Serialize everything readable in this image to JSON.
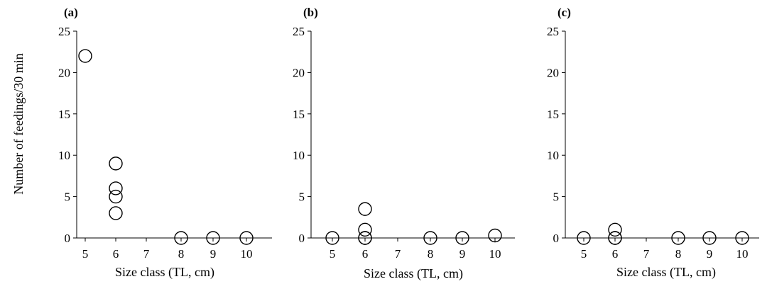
{
  "chart_data": [
    {
      "type": "scatter",
      "panel_label": "(a)",
      "title": "",
      "xlabel": "Size class (TL, cm)",
      "ylabel": "Number of feedings/30 min",
      "x_categories": [
        "5",
        "6",
        "7",
        "8",
        "9",
        "10"
      ],
      "y_ticks": [
        "0",
        "5",
        "10",
        "15",
        "20",
        "25"
      ],
      "ylim": [
        0,
        25
      ],
      "grid": false,
      "marker": "open-circle",
      "points": [
        {
          "x": "5",
          "y": 22
        },
        {
          "x": "6",
          "y": 9
        },
        {
          "x": "6",
          "y": 6
        },
        {
          "x": "6",
          "y": 5
        },
        {
          "x": "6",
          "y": 3
        },
        {
          "x": "8",
          "y": 0
        },
        {
          "x": "9",
          "y": 0
        },
        {
          "x": "10",
          "y": 0
        }
      ]
    },
    {
      "type": "scatter",
      "panel_label": "(b)",
      "title": "",
      "xlabel": "Size class (TL, cm)",
      "ylabel": "",
      "x_categories": [
        "5",
        "6",
        "7",
        "8",
        "9",
        "10"
      ],
      "y_ticks": [
        "0",
        "5",
        "10",
        "15",
        "20",
        "25"
      ],
      "ylim": [
        0,
        25
      ],
      "grid": false,
      "marker": "open-circle",
      "points": [
        {
          "x": "5",
          "y": 0
        },
        {
          "x": "6",
          "y": 3.5
        },
        {
          "x": "6",
          "y": 1
        },
        {
          "x": "6",
          "y": 0
        },
        {
          "x": "6",
          "y": 0
        },
        {
          "x": "8",
          "y": 0
        },
        {
          "x": "9",
          "y": 0
        },
        {
          "x": "10",
          "y": 0.3
        }
      ]
    },
    {
      "type": "scatter",
      "panel_label": "(c)",
      "title": "",
      "xlabel": "Size class (TL, cm)",
      "ylabel": "",
      "x_categories": [
        "5",
        "6",
        "7",
        "8",
        "9",
        "10"
      ],
      "y_ticks": [
        "0",
        "5",
        "10",
        "15",
        "20",
        "25"
      ],
      "ylim": [
        0,
        25
      ],
      "grid": false,
      "marker": "open-circle",
      "points": [
        {
          "x": "5",
          "y": 0
        },
        {
          "x": "6",
          "y": 1
        },
        {
          "x": "6",
          "y": 0
        },
        {
          "x": "6",
          "y": 0
        },
        {
          "x": "8",
          "y": 0
        },
        {
          "x": "9",
          "y": 0
        },
        {
          "x": "10",
          "y": 0
        }
      ]
    }
  ]
}
